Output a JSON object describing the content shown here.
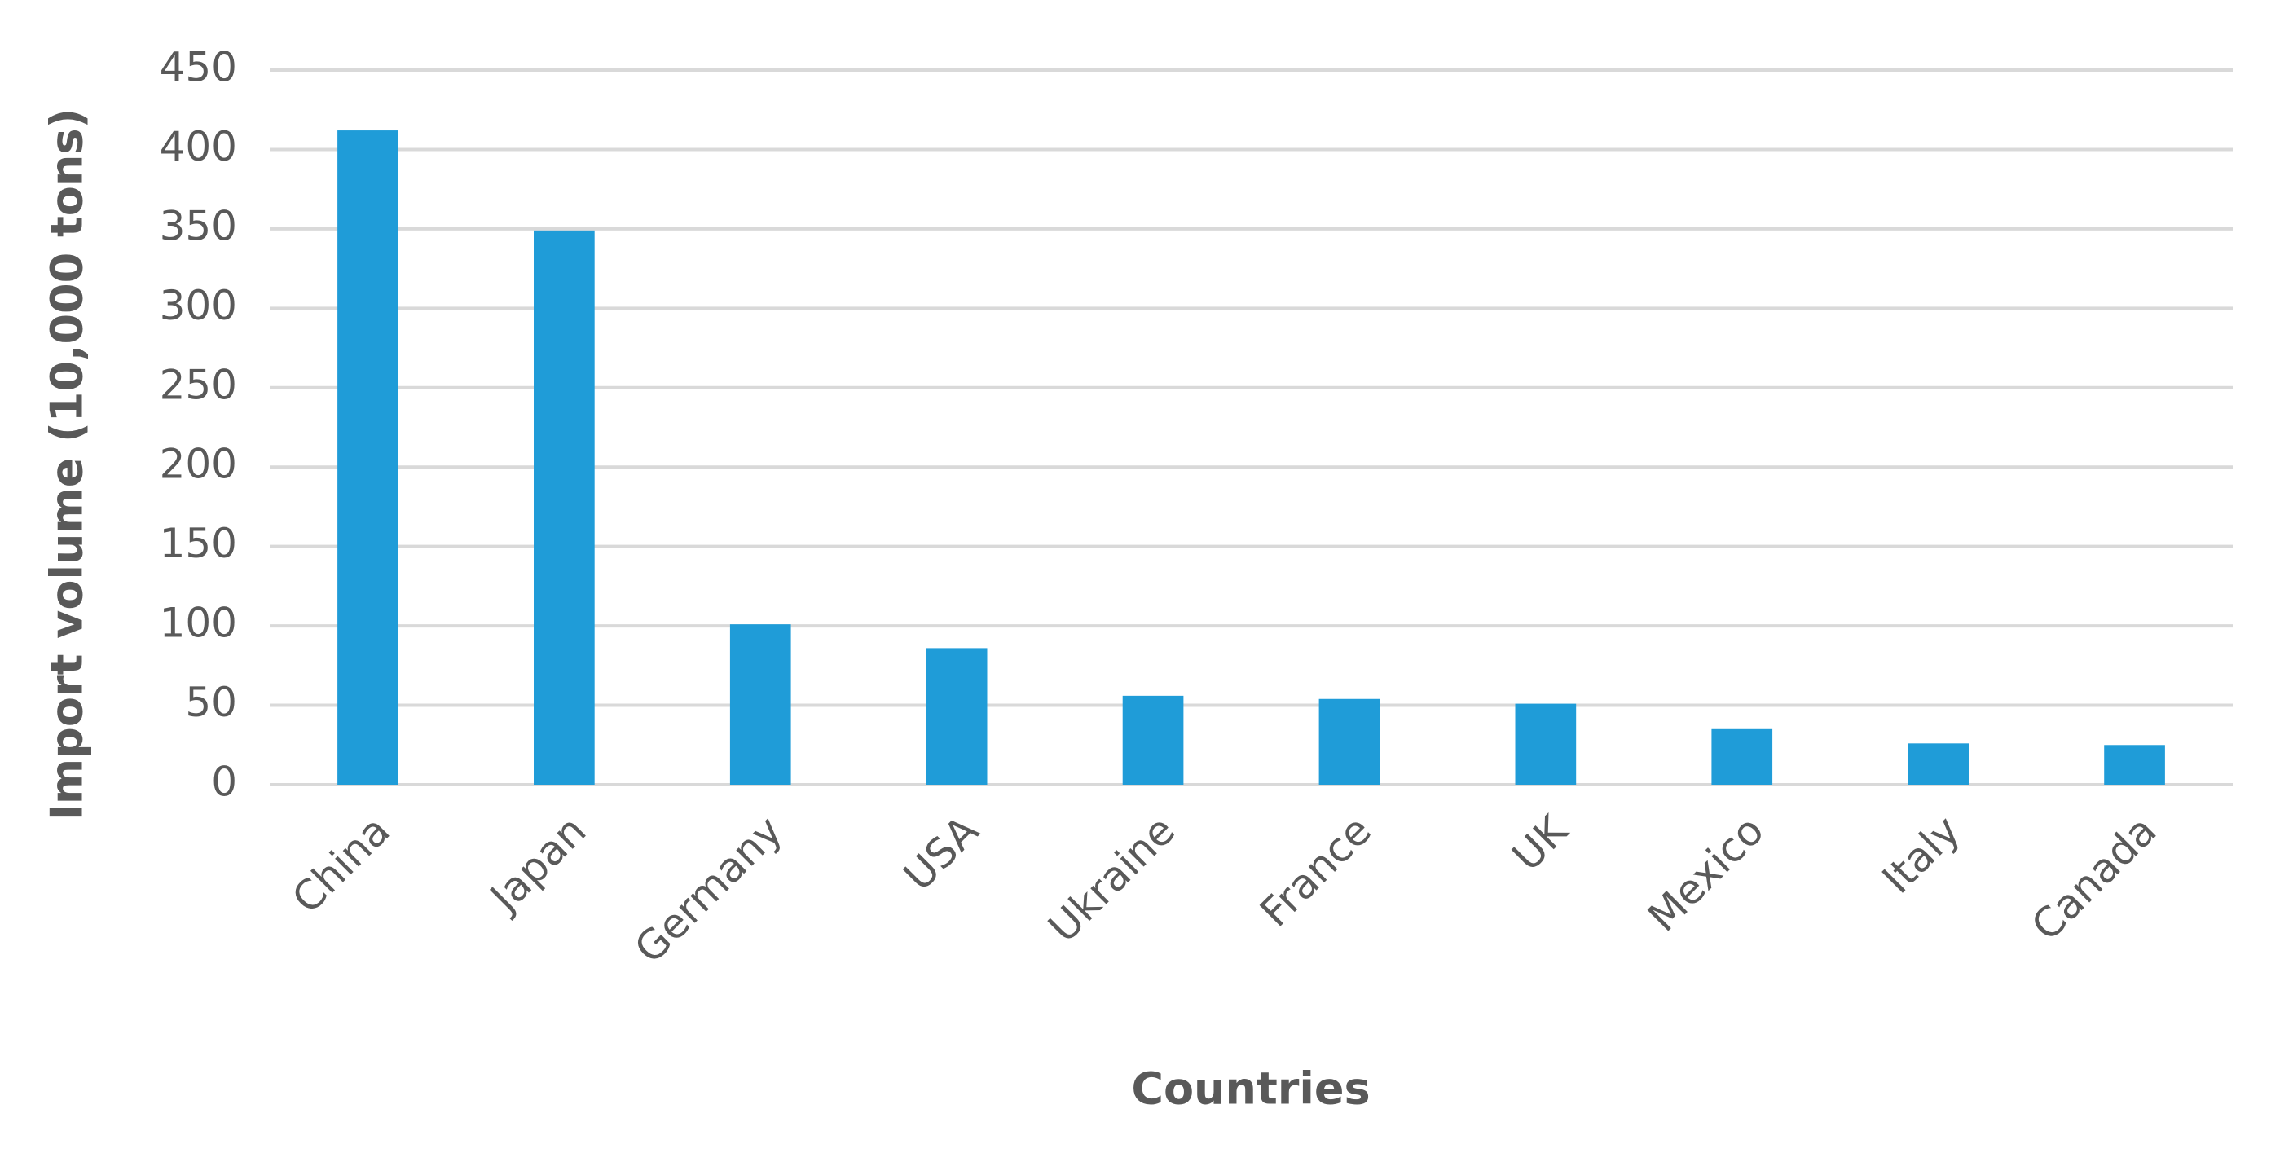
{
  "chart_data": {
    "type": "bar",
    "x_label": "Countries",
    "y_label": "Import volume (10,000 tons)",
    "categories": [
      "China",
      "Japan",
      "Germany",
      "USA",
      "Ukraine",
      "France",
      "UK",
      "Mexico",
      "Italy",
      "Canada"
    ],
    "values": [
      412,
      349,
      101,
      86,
      56,
      54,
      51,
      35,
      26,
      25
    ],
    "color": "#1f9cd8",
    "ylim": [
      0,
      450
    ],
    "yticks": [
      0,
      50,
      100,
      150,
      200,
      250,
      300,
      350,
      400,
      450
    ],
    "grid": true
  }
}
